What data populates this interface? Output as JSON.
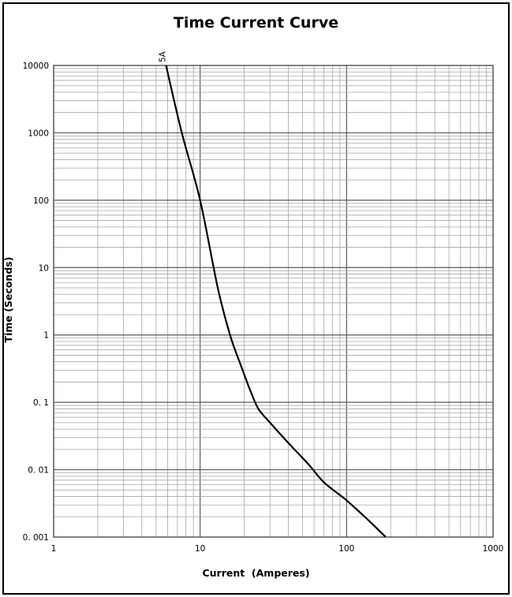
{
  "chart_data": {
    "type": "line",
    "title": "Time Current Curve",
    "xlabel": "Current  (Amperes)",
    "ylabel": "Time (Seconds)",
    "xscale": "log",
    "yscale": "log",
    "xlim": [
      1,
      1000
    ],
    "ylim": [
      0.001,
      10000
    ],
    "grid": true,
    "x_ticks": [
      "1",
      "10",
      "100",
      "1000"
    ],
    "y_ticks": [
      "0. 001",
      "0. 01",
      "0. 1",
      "1",
      "10",
      "100",
      "1000",
      "10000"
    ],
    "series": [
      {
        "name": "5A",
        "x": [
          5.85,
          7.5,
          10,
          13.2,
          16,
          19,
          22,
          25,
          30,
          40,
          55,
          70,
          100,
          140,
          185
        ],
        "y": [
          10000,
          1000,
          100,
          5,
          1,
          0.35,
          0.15,
          0.08,
          0.05,
          0.025,
          0.012,
          0.0065,
          0.0035,
          0.0018,
          0.001
        ]
      }
    ],
    "colors": {
      "curve": "#000000",
      "grid": "#a6a6a6",
      "axis": "#595959"
    }
  }
}
